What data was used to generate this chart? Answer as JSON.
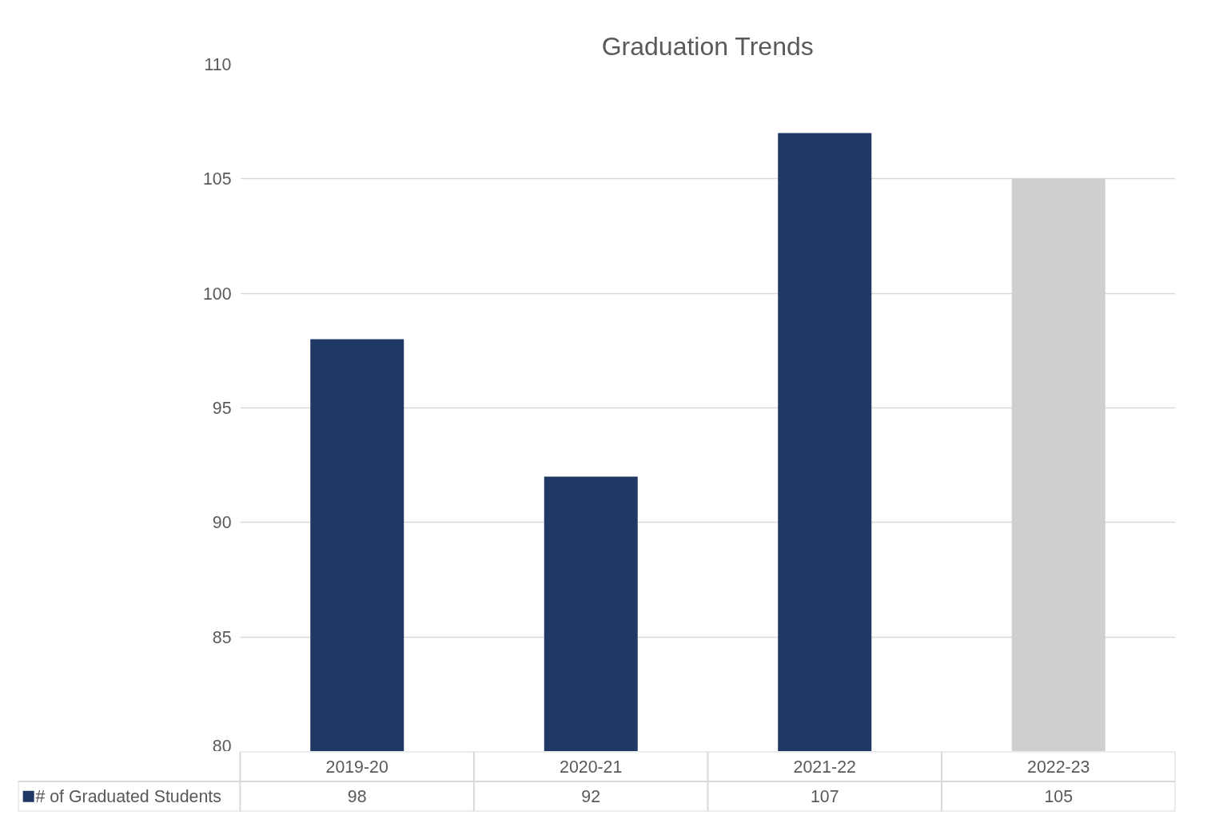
{
  "chart_data": {
    "type": "bar",
    "title": "Graduation Trends",
    "categories": [
      "2019-20",
      "2020-21",
      "2021-22",
      "2022-23"
    ],
    "series": [
      {
        "name": "# of Graduated Students",
        "color": "#203864",
        "colors": [
          "#203864",
          "#203864",
          "#203864",
          "#d0cece"
        ],
        "values": [
          98,
          92,
          107,
          105
        ]
      }
    ],
    "ylim": [
      80,
      110
    ],
    "yticks": [
      80,
      85,
      90,
      95,
      100,
      105,
      110
    ],
    "grid": "y",
    "data_labels": true,
    "legend": "bottom"
  }
}
